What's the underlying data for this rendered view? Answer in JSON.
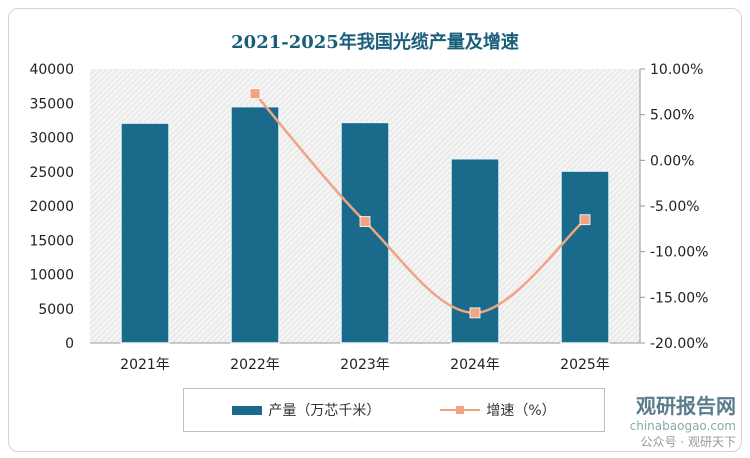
{
  "chart_data": {
    "type": "bar+line",
    "title": "2021-2025年我国光缆产量及增速",
    "categories": [
      "2021年",
      "2022年",
      "2023年",
      "2024年",
      "2025年"
    ],
    "series": [
      {
        "name": "产量（万芯千米）",
        "type": "bar",
        "axis": "left",
        "color": "#1a6a8c",
        "values": [
          32100,
          34500,
          32200,
          26900,
          25100
        ]
      },
      {
        "name": "增速（%）",
        "type": "line",
        "axis": "right",
        "color": "#f0a582",
        "values": [
          null,
          7.3,
          -6.7,
          -16.7,
          -6.5
        ]
      }
    ],
    "left_axis": {
      "ylim": [
        0,
        40000
      ],
      "ticks": [
        "0",
        "5000",
        "10000",
        "15000",
        "20000",
        "25000",
        "30000",
        "35000",
        "40000"
      ]
    },
    "right_axis": {
      "ylim": [
        -20,
        10
      ],
      "ticks": [
        "-20.00%",
        "-15.00%",
        "-10.00%",
        "-5.00%",
        "0.00%",
        "5.00%",
        "10.00%"
      ]
    },
    "legend": "bottom",
    "grid": false
  },
  "watermark": {
    "brand": "观研报告网",
    "site": "chinabaogao.com",
    "account": "公众号 · 观研天下"
  }
}
